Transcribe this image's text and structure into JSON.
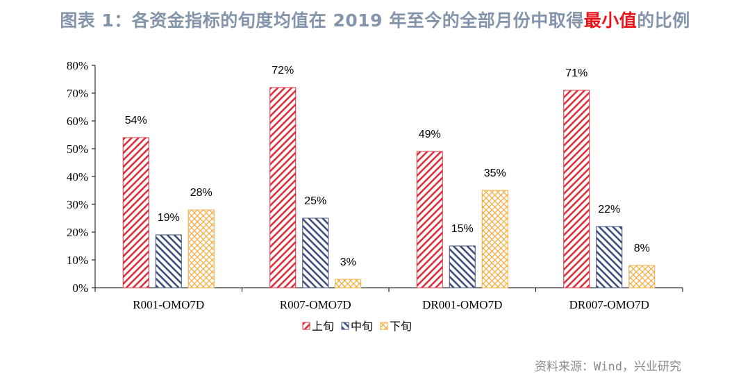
{
  "title": {
    "prefix": "图表 1：各资金指标的旬度均值在 2019 年至今的全部月份中取得",
    "highlight": "最小值",
    "suffix": "的比例"
  },
  "source": "资料来源：Wind，兴业研究",
  "colors": {
    "title": "#8494ab",
    "highlight": "#e8141c",
    "series": [
      "#d9303e",
      "#3d4e7a",
      "#f4a93a"
    ]
  },
  "chart_data": {
    "type": "bar",
    "categories": [
      "R001-OMO7D",
      "R007-OMO7D",
      "DR001-OMO7D",
      "DR007-OMO7D"
    ],
    "series": [
      {
        "name": "上旬",
        "values": [
          54,
          72,
          49,
          71
        ],
        "pattern": "diagonal-hatch"
      },
      {
        "name": "中旬",
        "values": [
          19,
          25,
          15,
          22
        ],
        "pattern": "diagonal-hatch-reverse"
      },
      {
        "name": "下旬",
        "values": [
          28,
          3,
          35,
          8
        ],
        "pattern": "crosshatch"
      }
    ],
    "ylim": [
      0,
      80
    ],
    "yticks": [
      "0%",
      "10%",
      "20%",
      "30%",
      "40%",
      "50%",
      "60%",
      "70%",
      "80%"
    ],
    "unit": "%",
    "grid": false,
    "legend": "bottom"
  }
}
